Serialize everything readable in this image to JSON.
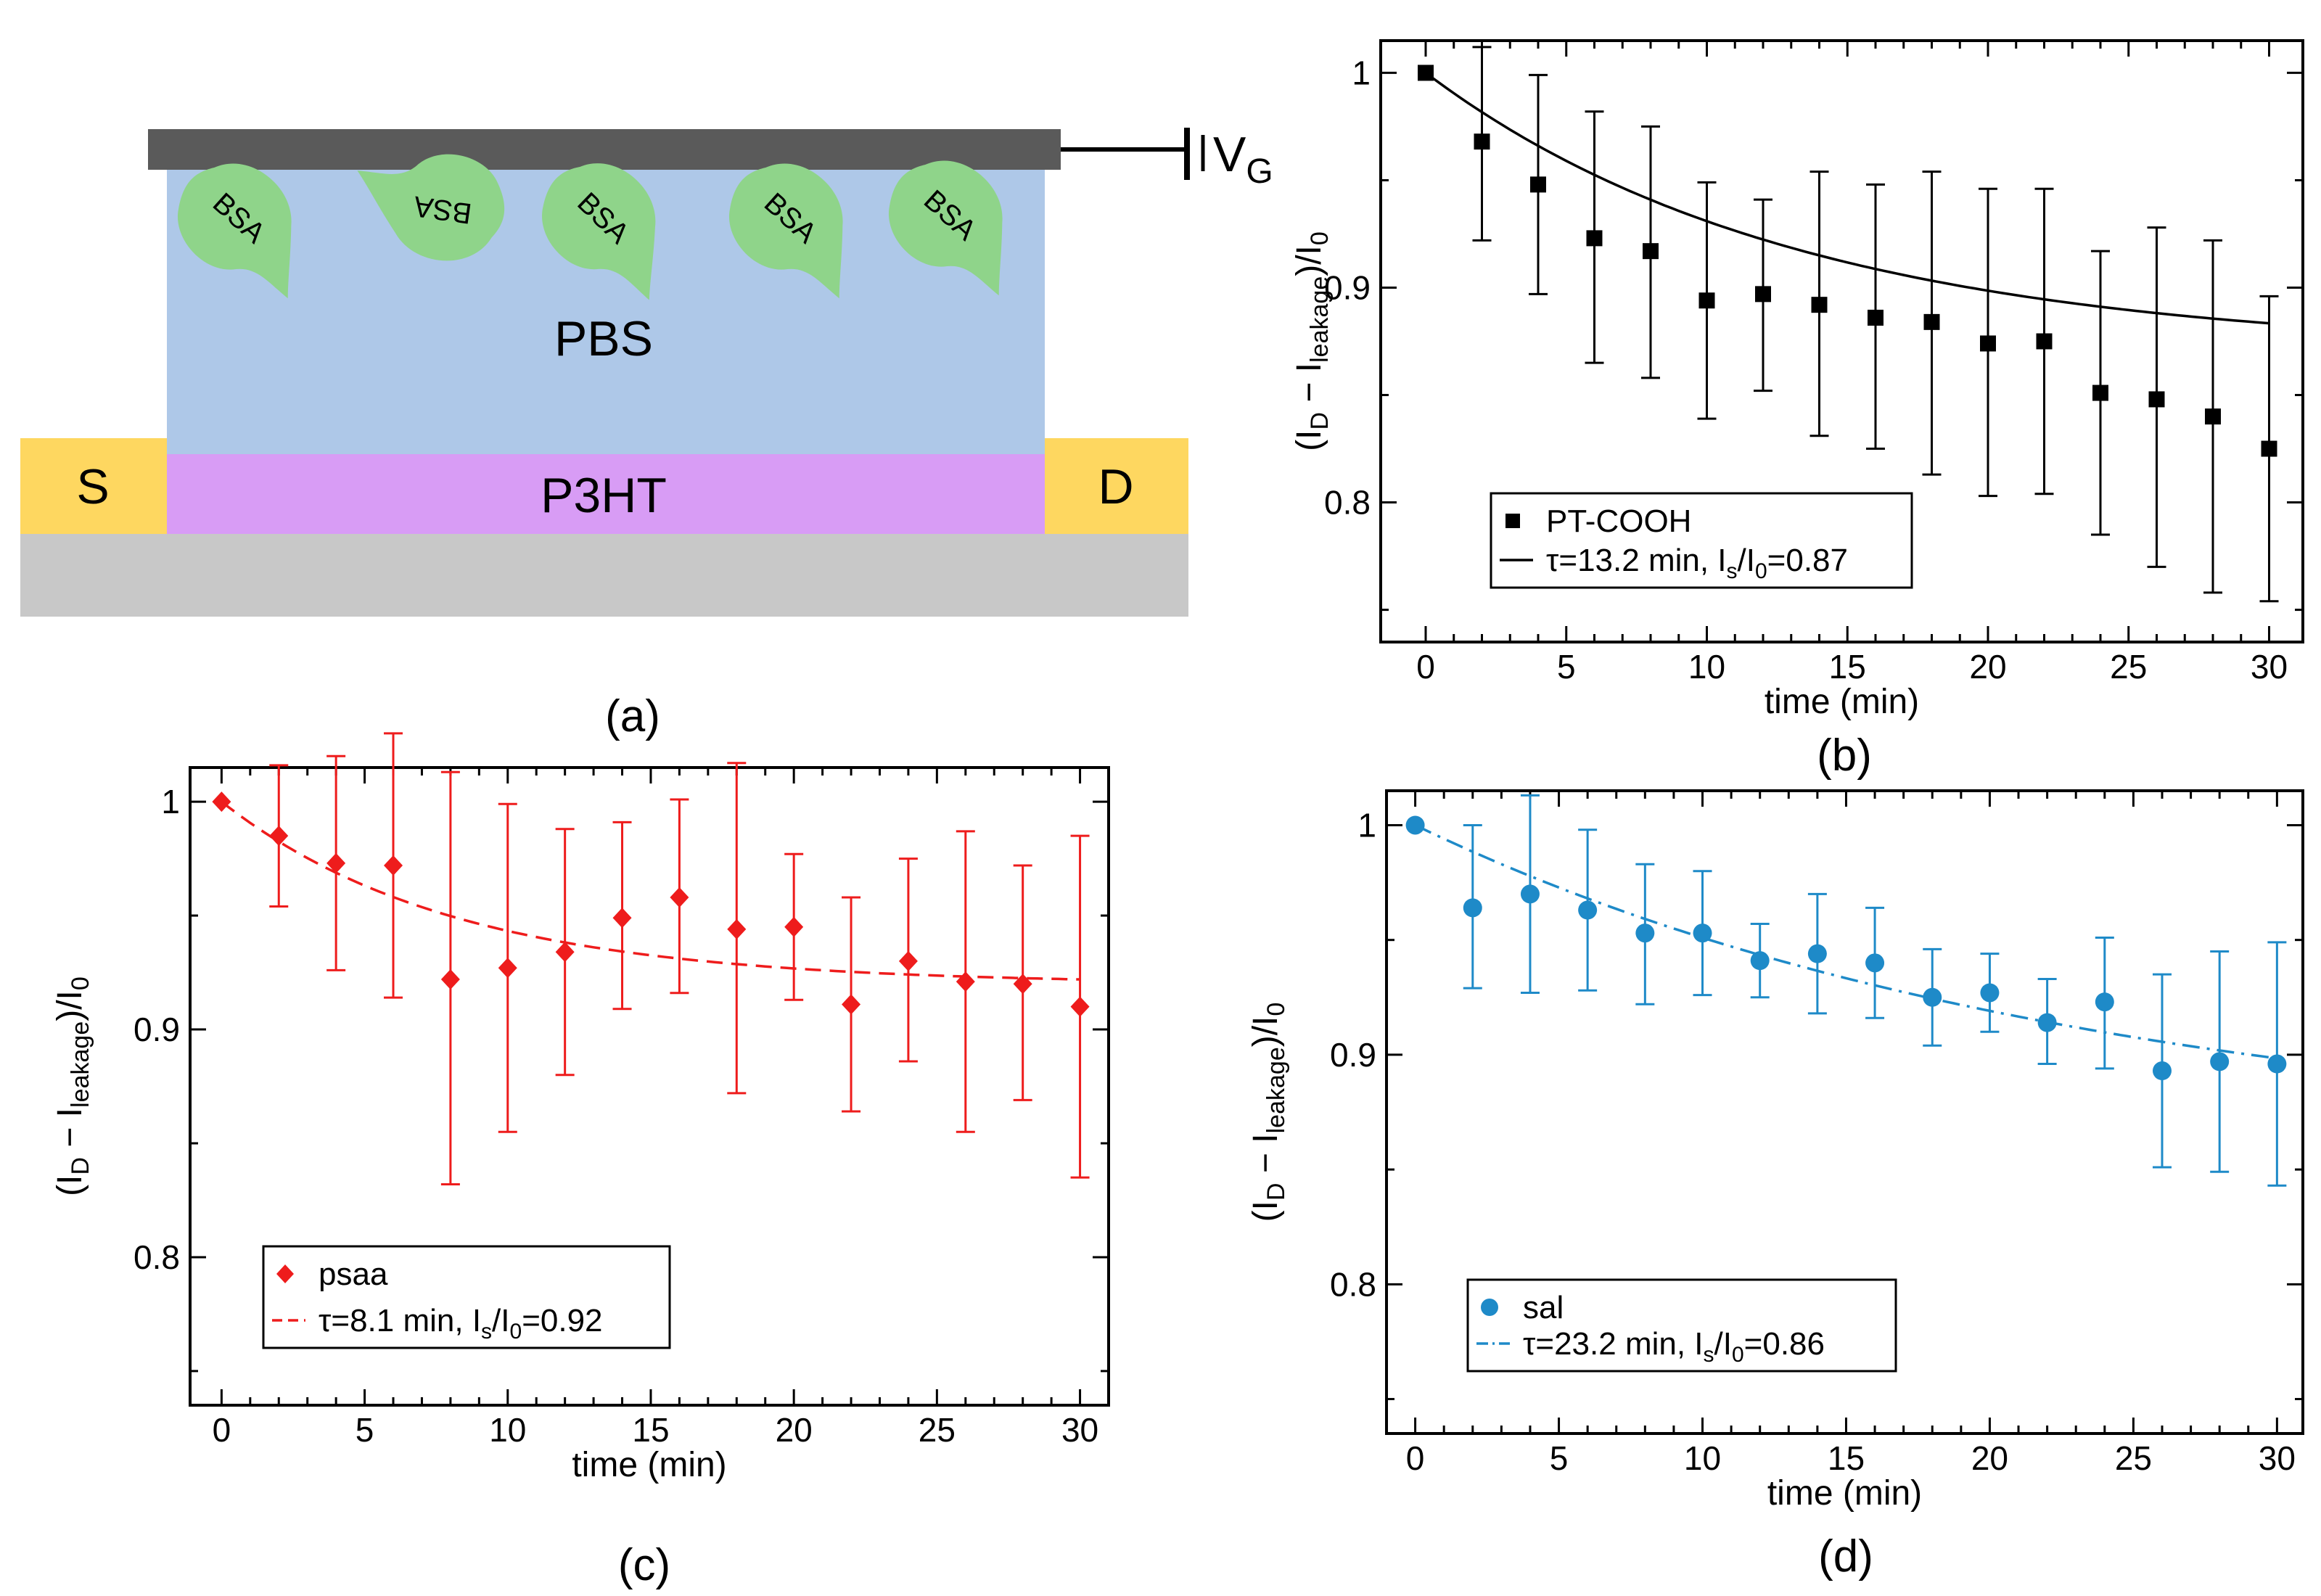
{
  "diagram": {
    "panel_label": "(a)",
    "gate_label": "V",
    "gate_sub": "G",
    "electrolyte": "PBS",
    "semiconductor": "P3HT",
    "source": "S",
    "drain": "D",
    "protein": "BSA",
    "colors": {
      "gate": "#5a5a5a",
      "electrolyte": "#aec8e8",
      "semiconductor": "#d89cf5",
      "electrodes": "#fed760",
      "substrate": "#c8c8c8",
      "protein": "#8fd48a"
    }
  },
  "chart_data": [
    {
      "id": "b",
      "type": "scatter",
      "panel_label": "(b)",
      "xlabel": "time  (min)",
      "ylabel": "(I_D − I_leakage)/I_0",
      "xlim": [
        -1.6,
        31.2
      ],
      "ylim": [
        0.735,
        1.015
      ],
      "xticks": [
        0,
        5,
        10,
        15,
        20,
        25,
        30
      ],
      "yticks": [
        0.8,
        0.9,
        1.0
      ],
      "ytick_labels": [
        "0.8",
        "0.9",
        "1"
      ],
      "color": "#000000",
      "marker": "square",
      "fit_style": "solid",
      "legend": {
        "position": "bottom-left",
        "series_name": "PT-COOH",
        "fit_label": "τ=13.2 min, I_s/I_0=0.87"
      },
      "fit": {
        "tau": 13.2,
        "Is_over_I0": 0.87
      },
      "x": [
        0,
        2,
        4,
        6,
        8,
        10,
        12,
        14,
        16,
        18,
        20,
        22,
        24,
        26,
        28,
        30
      ],
      "y": [
        1.0,
        0.968,
        0.948,
        0.923,
        0.917,
        0.894,
        0.897,
        0.892,
        0.886,
        0.884,
        0.874,
        0.875,
        0.851,
        0.848,
        0.84,
        0.825
      ],
      "err_low": [
        1.0,
        0.922,
        0.897,
        0.865,
        0.858,
        0.839,
        0.852,
        0.831,
        0.825,
        0.813,
        0.803,
        0.804,
        0.785,
        0.77,
        0.758,
        0.754
      ],
      "err_high": [
        1.0,
        1.012,
        0.999,
        0.982,
        0.975,
        0.949,
        0.941,
        0.954,
        0.948,
        0.954,
        0.946,
        0.946,
        0.917,
        0.928,
        0.922,
        0.896
      ]
    },
    {
      "id": "c",
      "type": "scatter",
      "panel_label": "(c)",
      "xlabel": "time  (min)",
      "ylabel": "(I_D − I_leakage)/I_0",
      "xlim": [
        -1.1,
        31.0
      ],
      "ylim": [
        0.735,
        1.015
      ],
      "xticks": [
        0,
        5,
        10,
        15,
        20,
        25,
        30
      ],
      "yticks": [
        0.8,
        0.9,
        1.0
      ],
      "ytick_labels": [
        "0.8",
        "0.9",
        "1"
      ],
      "color": "#ee1c1c",
      "marker": "diamond",
      "fit_style": "dashed",
      "legend": {
        "position": "bottom-left",
        "series_name": "psaa",
        "fit_label": "τ=8.1 min, I_s/I_0=0.92"
      },
      "fit": {
        "tau": 8.1,
        "Is_over_I0": 0.92
      },
      "x": [
        0,
        2,
        4,
        6,
        8,
        10,
        12,
        14,
        16,
        18,
        20,
        22,
        24,
        26,
        28,
        30
      ],
      "y": [
        1.0,
        0.985,
        0.973,
        0.972,
        0.922,
        0.927,
        0.934,
        0.949,
        0.958,
        0.944,
        0.945,
        0.911,
        0.93,
        0.921,
        0.92,
        0.91
      ],
      "err_low": [
        1.0,
        0.954,
        0.926,
        0.914,
        0.832,
        0.855,
        0.88,
        0.909,
        0.916,
        0.872,
        0.913,
        0.864,
        0.886,
        0.855,
        0.869,
        0.835
      ],
      "err_high": [
        1.0,
        1.016,
        1.02,
        1.03,
        1.013,
        0.999,
        0.988,
        0.991,
        1.001,
        1.017,
        0.977,
        0.958,
        0.975,
        0.987,
        0.972,
        0.985
      ]
    },
    {
      "id": "d",
      "type": "scatter",
      "panel_label": "(d)",
      "xlabel": "time  (min)",
      "ylabel": "(I_D − I_leakage)/I_0",
      "xlim": [
        -1.0,
        30.9
      ],
      "ylim": [
        0.735,
        1.015
      ],
      "xticks": [
        0,
        5,
        10,
        15,
        20,
        25,
        30
      ],
      "yticks": [
        0.8,
        0.9,
        1.0
      ],
      "ytick_labels": [
        "0.8",
        "0.9",
        "1"
      ],
      "color": "#1e8ac8",
      "marker": "circle",
      "fit_style": "dashdot",
      "legend": {
        "position": "bottom-left",
        "series_name": "sal",
        "fit_label": "τ=23.2 min, I_s/I_0=0.86"
      },
      "fit": {
        "tau": 23.2,
        "Is_over_I0": 0.86
      },
      "x": [
        0,
        2,
        4,
        6,
        8,
        10,
        12,
        14,
        16,
        18,
        20,
        22,
        24,
        26,
        28,
        30
      ],
      "y": [
        1.0,
        0.964,
        0.97,
        0.963,
        0.953,
        0.953,
        0.941,
        0.944,
        0.94,
        0.925,
        0.927,
        0.914,
        0.923,
        0.893,
        0.897,
        0.896
      ],
      "err_low": [
        1.0,
        0.929,
        0.927,
        0.928,
        0.922,
        0.926,
        0.925,
        0.918,
        0.916,
        0.904,
        0.91,
        0.896,
        0.894,
        0.851,
        0.849,
        0.843
      ],
      "err_high": [
        1.0,
        1.0,
        1.013,
        0.998,
        0.983,
        0.98,
        0.957,
        0.97,
        0.964,
        0.946,
        0.944,
        0.933,
        0.951,
        0.935,
        0.945,
        0.949
      ]
    }
  ]
}
